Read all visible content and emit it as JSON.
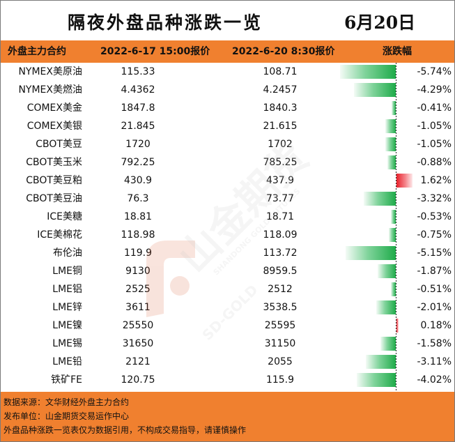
{
  "title": "隔夜外盘品种涨跌一览",
  "date": "6月20日",
  "headers": {
    "name": "外盘主力合约",
    "price1": "2022-6-17 15:00报价",
    "price2": "2022-6-20 8:30报价",
    "change": "涨跌幅"
  },
  "colors": {
    "header_bg": "#f0802f",
    "down": "#1fab4a",
    "up": "#e8202b"
  },
  "watermark": {
    "brand": "山金期货",
    "english": "SHANDONG GOLD FUTURES",
    "code": "SD-GOLD"
  },
  "chart_data": {
    "type": "table",
    "columns": [
      "外盘主力合约",
      "2022-6-17 15:00报价",
      "2022-6-20 8:30报价",
      "涨跌幅"
    ],
    "max_abs_pct": 5.74,
    "rows": [
      {
        "name": "NYMEX美原油",
        "p1": "115.33",
        "p2": "108.71",
        "pct_text": "-5.74%",
        "pct": -5.74
      },
      {
        "name": "NYMEX美燃油",
        "p1": "4.4362",
        "p2": "4.2457",
        "pct_text": "-4.29%",
        "pct": -4.29
      },
      {
        "name": "COMEX美金",
        "p1": "1847.8",
        "p2": "1840.3",
        "pct_text": "-0.41%",
        "pct": -0.41
      },
      {
        "name": "COMEX美银",
        "p1": "21.845",
        "p2": "21.615",
        "pct_text": "-1.05%",
        "pct": -1.05
      },
      {
        "name": "CBOT美豆",
        "p1": "1720",
        "p2": "1702",
        "pct_text": "-1.05%",
        "pct": -1.05
      },
      {
        "name": "CBOT美玉米",
        "p1": "792.25",
        "p2": "785.25",
        "pct_text": "-0.88%",
        "pct": -0.88
      },
      {
        "name": "CBOT美豆粕",
        "p1": "430.9",
        "p2": "437.9",
        "pct_text": "1.62%",
        "pct": 1.62
      },
      {
        "name": "CBOT美豆油",
        "p1": "76.3",
        "p2": "73.77",
        "pct_text": "-3.32%",
        "pct": -3.32
      },
      {
        "name": "ICE美糖",
        "p1": "18.81",
        "p2": "18.71",
        "pct_text": "-0.53%",
        "pct": -0.53
      },
      {
        "name": "ICE美棉花",
        "p1": "118.98",
        "p2": "118.09",
        "pct_text": "-0.75%",
        "pct": -0.75
      },
      {
        "name": "布伦油",
        "p1": "119.9",
        "p2": "113.72",
        "pct_text": "-5.15%",
        "pct": -5.15
      },
      {
        "name": "LME铜",
        "p1": "9130",
        "p2": "8959.5",
        "pct_text": "-1.87%",
        "pct": -1.87
      },
      {
        "name": "LME铝",
        "p1": "2525",
        "p2": "2512",
        "pct_text": "-0.51%",
        "pct": -0.51
      },
      {
        "name": "LME锌",
        "p1": "3611",
        "p2": "3538.5",
        "pct_text": "-2.01%",
        "pct": -2.01
      },
      {
        "name": "LME镍",
        "p1": "25550",
        "p2": "25595",
        "pct_text": "0.18%",
        "pct": 0.18
      },
      {
        "name": "LME锡",
        "p1": "31650",
        "p2": "31150",
        "pct_text": "-1.58%",
        "pct": -1.58
      },
      {
        "name": "LME铅",
        "p1": "2121",
        "p2": "2055",
        "pct_text": "-3.11%",
        "pct": -3.11
      },
      {
        "name": "铁矿FE",
        "p1": "120.75",
        "p2": "115.9",
        "pct_text": "-4.02%",
        "pct": -4.02
      }
    ]
  },
  "footer": {
    "source": "数据来源：文华财经外盘主力合约",
    "publisher": "发布单位：山金期货交易运作中心",
    "disclaimer": "外盘品种涨跌一览表仅为数据引用，不构成交易指导，请谨慎操作"
  }
}
